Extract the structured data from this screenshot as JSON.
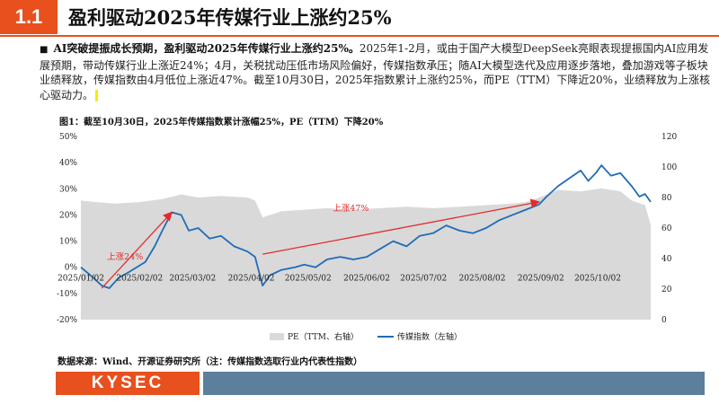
{
  "section": {
    "number": "1.1",
    "title": "盈利驱动2025年传媒行业上涨约25%"
  },
  "bullet": {
    "symbol": "■",
    "bold_text": "AI突破提振成长预期，盈利驱动2025年传媒行业上涨约25%。",
    "body_text": "2025年1-2月，或由于国产大模型DeepSeek亮眼表现提振国内AI应用发展预期，带动传媒行业上涨近24%；4月，关税扰动压低市场风险偏好，传媒指数承压；随AI大模型迭代及应用逐步落地，叠加游戏等子板块业绩释放，传媒指数由4月低位上涨近47%。截至10月30日，2025年指数累计上涨约25%，而PE（TTM）下降近20%，业绩释放为上涨核心驱动力。"
  },
  "figure_title": "图1：截至10月30日，2025年传媒指数累计涨幅25%，PE（TTM）下降20%",
  "source": "数据来源：Wind、开源证券研究所（注：传媒指数选取行业内代表性指数）",
  "footer": {
    "logo": "KYSEC"
  },
  "colors": {
    "accent": "#e8501e",
    "index_line": "#1f6cb7",
    "pe_area": "#d9d9d9",
    "annotation": "#e32b2b",
    "footer_bar": "#5c7f9c"
  },
  "chart_data": {
    "type": "line",
    "x_ticks": [
      "2025/01/02",
      "2025/02/02",
      "2025/03/02",
      "2025/04/02",
      "2025/05/02",
      "2025/06/02",
      "2025/07/02",
      "2025/08/02",
      "2025/09/02",
      "2025/10/02"
    ],
    "y_left": {
      "ticks": [
        "-20%",
        "-10%",
        "0%",
        "10%",
        "20%",
        "30%",
        "40%",
        "50%"
      ],
      "range": [
        -20,
        50
      ]
    },
    "y_right": {
      "ticks": [
        "0",
        "20",
        "40",
        "60",
        "80",
        "100",
        "120"
      ],
      "range": [
        0,
        120
      ]
    },
    "legend": {
      "pe_label": "PE（TTM、右轴）",
      "index_label": "传媒指数（左轴）",
      "position": "bottom"
    },
    "series": [
      {
        "name": "传媒指数（左轴）",
        "axis": "left",
        "style": "line",
        "points": [
          [
            "2025/01/02",
            0
          ],
          [
            "2025/01/07",
            -3
          ],
          [
            "2025/01/13",
            -7
          ],
          [
            "2025/01/17",
            -8
          ],
          [
            "2025/01/22",
            -4
          ],
          [
            "2025/01/27",
            -2
          ],
          [
            "2025/02/05",
            2
          ],
          [
            "2025/02/10",
            8
          ],
          [
            "2025/02/14",
            14
          ],
          [
            "2025/02/19",
            21
          ],
          [
            "2025/02/24",
            20
          ],
          [
            "2025/02/28",
            14
          ],
          [
            "2025/03/05",
            15
          ],
          [
            "2025/03/11",
            11
          ],
          [
            "2025/03/17",
            12
          ],
          [
            "2025/03/24",
            8
          ],
          [
            "2025/03/31",
            6
          ],
          [
            "2025/04/04",
            4
          ],
          [
            "2025/04/08",
            -7
          ],
          [
            "2025/04/12",
            -3
          ],
          [
            "2025/04/18",
            -1
          ],
          [
            "2025/04/25",
            0
          ],
          [
            "2025/04/30",
            1
          ],
          [
            "2025/05/06",
            0
          ],
          [
            "2025/05/12",
            3
          ],
          [
            "2025/05/19",
            4
          ],
          [
            "2025/05/26",
            3
          ],
          [
            "2025/06/02",
            4
          ],
          [
            "2025/06/09",
            7
          ],
          [
            "2025/06/16",
            10
          ],
          [
            "2025/06/23",
            8
          ],
          [
            "2025/06/30",
            12
          ],
          [
            "2025/07/07",
            13
          ],
          [
            "2025/07/14",
            16
          ],
          [
            "2025/07/21",
            14
          ],
          [
            "2025/07/28",
            13
          ],
          [
            "2025/08/04",
            15
          ],
          [
            "2025/08/11",
            18
          ],
          [
            "2025/08/18",
            20
          ],
          [
            "2025/08/25",
            22
          ],
          [
            "2025/09/01",
            24
          ],
          [
            "2025/09/05",
            27
          ],
          [
            "2025/09/11",
            31
          ],
          [
            "2025/09/17",
            34
          ],
          [
            "2025/09/23",
            37
          ],
          [
            "2025/09/27",
            33
          ],
          [
            "2025/10/01",
            36
          ],
          [
            "2025/10/04",
            39
          ],
          [
            "2025/10/09",
            35
          ],
          [
            "2025/10/14",
            36
          ],
          [
            "2025/10/20",
            31
          ],
          [
            "2025/10/24",
            27
          ],
          [
            "2025/10/27",
            28
          ],
          [
            "2025/10/30",
            25
          ]
        ]
      },
      {
        "name": "PE（TTM、右轴）",
        "axis": "right",
        "style": "area",
        "points": [
          [
            "2025/01/02",
            78
          ],
          [
            "2025/01/10",
            77
          ],
          [
            "2025/01/20",
            76
          ],
          [
            "2025/02/02",
            77
          ],
          [
            "2025/02/14",
            79
          ],
          [
            "2025/02/24",
            82
          ],
          [
            "2025/03/05",
            80
          ],
          [
            "2025/03/17",
            81
          ],
          [
            "2025/03/31",
            80
          ],
          [
            "2025/04/04",
            78
          ],
          [
            "2025/04/08",
            67
          ],
          [
            "2025/04/18",
            71
          ],
          [
            "2025/04/30",
            72
          ],
          [
            "2025/05/12",
            73
          ],
          [
            "2025/05/26",
            72
          ],
          [
            "2025/06/09",
            73
          ],
          [
            "2025/06/23",
            74
          ],
          [
            "2025/07/07",
            73
          ],
          [
            "2025/07/21",
            74
          ],
          [
            "2025/08/04",
            75
          ],
          [
            "2025/08/18",
            76
          ],
          [
            "2025/08/25",
            77
          ],
          [
            "2025/09/01",
            80
          ],
          [
            "2025/09/11",
            85
          ],
          [
            "2025/09/23",
            84
          ],
          [
            "2025/10/04",
            86
          ],
          [
            "2025/10/14",
            84
          ],
          [
            "2025/10/20",
            78
          ],
          [
            "2025/10/27",
            75
          ],
          [
            "2025/10/30",
            62
          ]
        ]
      }
    ],
    "annotations": [
      {
        "text": "上涨24%",
        "from": [
          "2025/01/13",
          -8
        ],
        "to": [
          "2025/02/19",
          21
        ]
      },
      {
        "text": "上涨47%",
        "from": [
          "2025/04/08",
          5
        ],
        "to": [
          "2025/09/01",
          25
        ]
      }
    ],
    "annotation_labels": [
      "上涨24%",
      "上涨47%"
    ]
  }
}
